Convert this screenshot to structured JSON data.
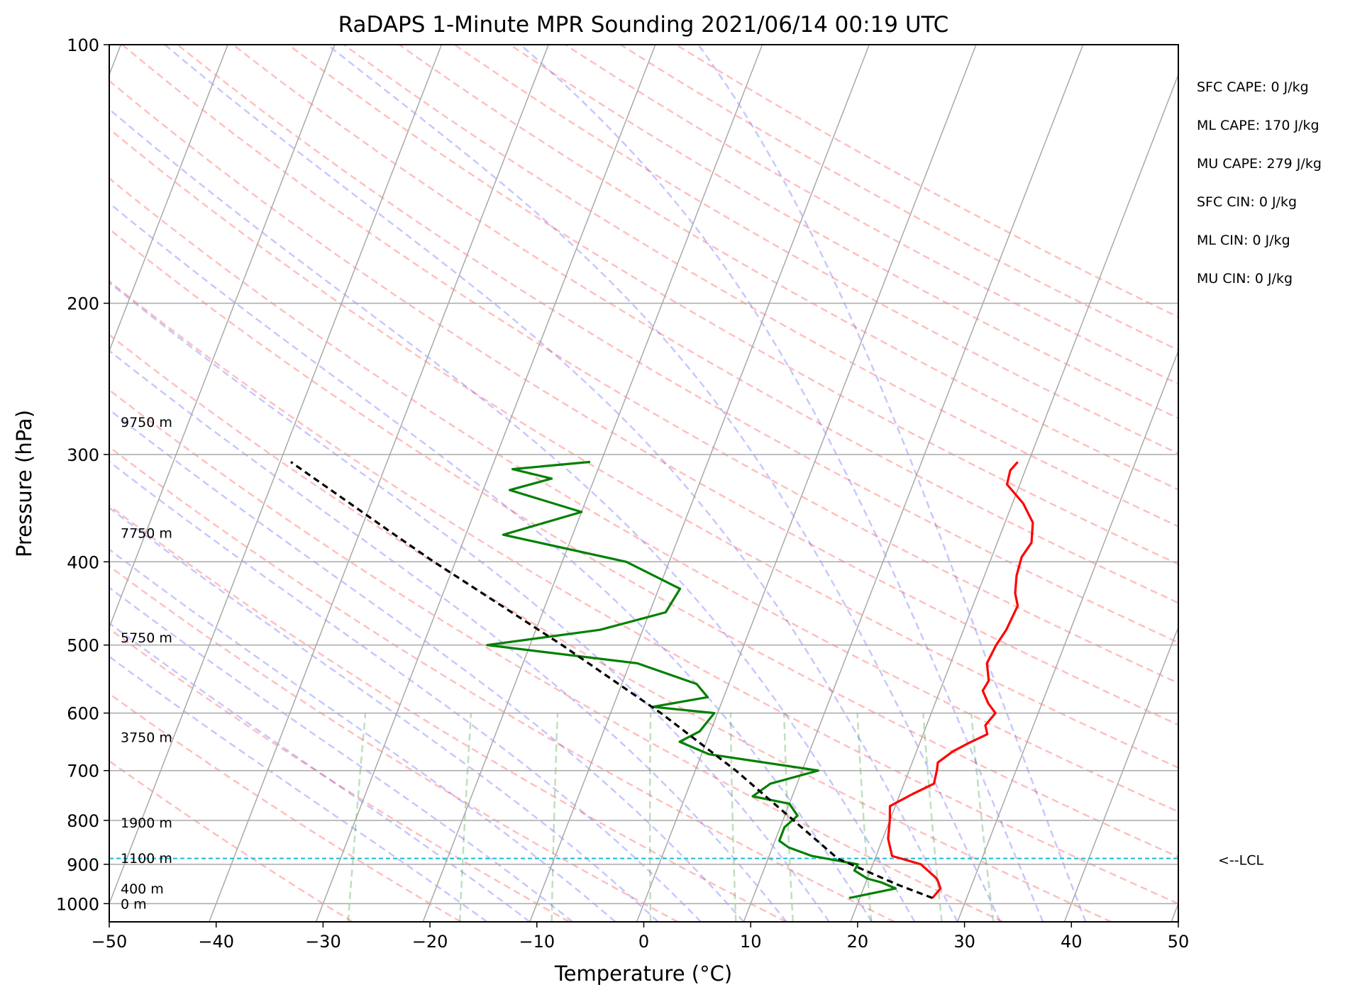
{
  "chart_data": {
    "type": "skew-t",
    "title": "RaDAPS 1-Minute MPR Sounding 2021/06/14 00:19 UTC",
    "xlabel": "Temperature (°C)",
    "ylabel": "Pressure (hPa)",
    "xlim": [
      -50,
      50
    ],
    "ylim": [
      1050,
      100
    ],
    "y_scale": "log",
    "grid": true,
    "x_ticks": [
      "−50",
      "−40",
      "−30",
      "−20",
      "−10",
      "0",
      "10",
      "20",
      "30",
      "40",
      "50"
    ],
    "y_ticks": [
      "100",
      "200",
      "300",
      "400",
      "500",
      "600",
      "700",
      "800",
      "900",
      "1000"
    ],
    "height_labels": [
      {
        "text": "9750 m",
        "pressure": 275
      },
      {
        "text": "7750 m",
        "pressure": 370
      },
      {
        "text": "5750 m",
        "pressure": 490
      },
      {
        "text": "3750 m",
        "pressure": 640
      },
      {
        "text": "1900 m",
        "pressure": 805
      },
      {
        "text": "1100 m",
        "pressure": 885
      },
      {
        "text": "400 m",
        "pressure": 960
      },
      {
        "text": "0 m",
        "pressure": 1000
      }
    ],
    "parameters": [
      "SFC CAPE: 0 J/kg",
      "ML CAPE: 170 J/kg",
      "MU CAPE: 279 J/kg",
      "SFC CIN: 0 J/kg",
      "ML CIN: 0 J/kg",
      "MU CIN: 0 J/kg"
    ],
    "lcl": {
      "label": "<--LCL",
      "pressure": 886
    },
    "series": [
      {
        "name": "Temperature",
        "color": "#ff0000",
        "points": [
          [
            985,
            26.8
          ],
          [
            960,
            27.2
          ],
          [
            945,
            26.8
          ],
          [
            935,
            26.5
          ],
          [
            900,
            24.5
          ],
          [
            880,
            21.5
          ],
          [
            840,
            20.5
          ],
          [
            800,
            20.0
          ],
          [
            770,
            19.5
          ],
          [
            745,
            21.2
          ],
          [
            725,
            22.8
          ],
          [
            700,
            22.6
          ],
          [
            685,
            22.4
          ],
          [
            665,
            23.4
          ],
          [
            650,
            24.6
          ],
          [
            635,
            26.0
          ],
          [
            620,
            25.5
          ],
          [
            600,
            26.0
          ],
          [
            585,
            25.0
          ],
          [
            565,
            24.0
          ],
          [
            550,
            24.2
          ],
          [
            525,
            23.4
          ],
          [
            500,
            23.6
          ],
          [
            480,
            24.0
          ],
          [
            450,
            24.2
          ],
          [
            435,
            23.5
          ],
          [
            415,
            23.0
          ],
          [
            395,
            22.8
          ],
          [
            380,
            23.2
          ],
          [
            360,
            22.6
          ],
          [
            342,
            21.0
          ],
          [
            325,
            18.8
          ],
          [
            313,
            18.6
          ],
          [
            306,
            19.0
          ]
        ]
      },
      {
        "name": "Dewpoint",
        "color": "#008000",
        "points": [
          [
            985,
            19.0
          ],
          [
            960,
            23.0
          ],
          [
            945,
            21.5
          ],
          [
            935,
            20.0
          ],
          [
            915,
            18.5
          ],
          [
            900,
            18.6
          ],
          [
            880,
            14.0
          ],
          [
            860,
            11.5
          ],
          [
            845,
            10.4
          ],
          [
            830,
            10.4
          ],
          [
            815,
            10.4
          ],
          [
            790,
            11.2
          ],
          [
            765,
            10.0
          ],
          [
            750,
            6.3
          ],
          [
            725,
            7.5
          ],
          [
            700,
            11.5
          ],
          [
            670,
            0.7
          ],
          [
            648,
            -2.5
          ],
          [
            630,
            -1.0
          ],
          [
            600,
            -0.3
          ],
          [
            590,
            -6.3
          ],
          [
            575,
            -1.5
          ],
          [
            555,
            -3.0
          ],
          [
            525,
            -9.3
          ],
          [
            500,
            -24.0
          ],
          [
            480,
            -14.0
          ],
          [
            458,
            -8.5
          ],
          [
            430,
            -8.0
          ],
          [
            400,
            -14.0
          ],
          [
            372,
            -26.5
          ],
          [
            350,
            -20.0
          ],
          [
            330,
            -27.5
          ],
          [
            320,
            -24.0
          ],
          [
            312,
            -28.0
          ],
          [
            306,
            -21.0
          ]
        ]
      },
      {
        "name": "Parcel",
        "color": "#000000",
        "points": [
          [
            985,
            26.8
          ],
          [
            950,
            23.0
          ],
          [
            886,
            16.5
          ],
          [
            800,
            11.0
          ],
          [
            700,
            3.8
          ],
          [
            600,
            -5.3
          ],
          [
            500,
            -17.0
          ],
          [
            400,
            -32.0
          ],
          [
            370,
            -37.0
          ],
          [
            306,
            -49.0
          ]
        ]
      }
    ]
  }
}
